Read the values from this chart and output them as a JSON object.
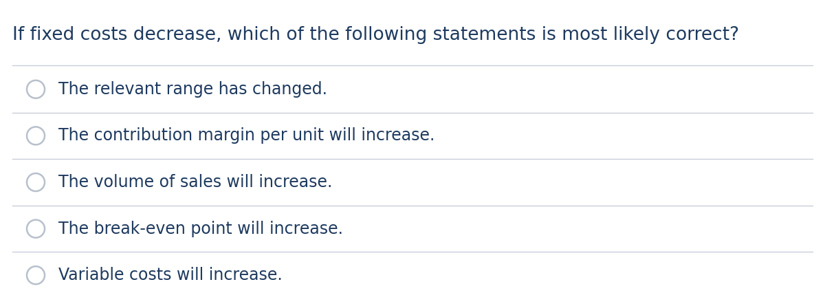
{
  "question": "If fixed costs decrease, which of the following statements is most likely correct?",
  "options": [
    "The relevant range has changed.",
    "The contribution margin per unit will increase.",
    "The volume of sales will increase.",
    "The break-even point will increase.",
    "Variable costs will increase."
  ],
  "bg_color": "#ffffff",
  "text_color": "#1e3a5f",
  "question_fontsize": 19,
  "option_fontsize": 17,
  "circle_color": "#b8c0cc",
  "line_color": "#c8cdd8",
  "figwidth": 12.0,
  "figheight": 4.42,
  "dpi": 100
}
